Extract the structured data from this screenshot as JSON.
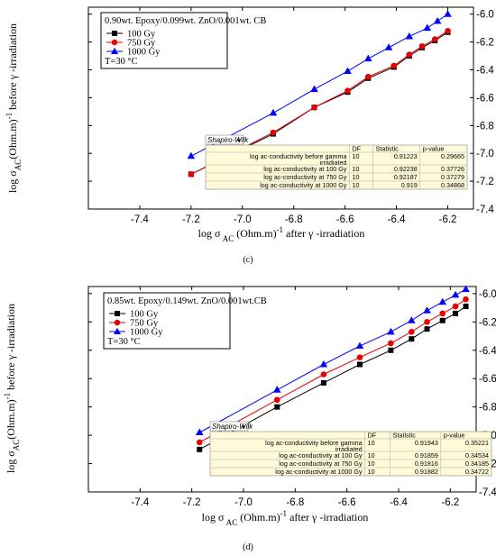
{
  "chart_data": [
    {
      "type": "line",
      "panel_label": "(c)",
      "legend_title": "0.90wt. Epoxy/0.099wt. ZnO/0.001wt. CB",
      "legend_note": "T=30 °C",
      "xlabel": "log σ AC (Ohm.m)^-1 after γ-irradiation",
      "ylabel": "log σ AC (Ohm.m)^-1 before γ-irradiation",
      "xlim": [
        -7.6,
        -6.1
      ],
      "ylim": [
        -7.4,
        -5.95
      ],
      "x_ticks": [
        "-7.4",
        "-7.2",
        "-7.0",
        "-6.8",
        "-6.6",
        "-6.4",
        "-6.2"
      ],
      "y_ticks": [
        "-6.0",
        "-6.2",
        "-6.4",
        "-6.6",
        "-6.8",
        "-7.0",
        "-7.2",
        "-7.4"
      ],
      "series": [
        {
          "name": "100 Gy",
          "color": "#000000",
          "marker": "square",
          "x": [
            -7.2,
            -6.88,
            -6.72,
            -6.59,
            -6.51,
            -6.41,
            -6.35,
            -6.3,
            -6.25,
            -6.2
          ],
          "y": [
            -7.15,
            -6.86,
            -6.67,
            -6.56,
            -6.46,
            -6.38,
            -6.3,
            -6.24,
            -6.19,
            -6.13
          ]
        },
        {
          "name": "750 Gy",
          "color": "#e60000",
          "marker": "circle",
          "x": [
            -7.2,
            -6.88,
            -6.72,
            -6.59,
            -6.51,
            -6.41,
            -6.35,
            -6.3,
            -6.25,
            -6.2
          ],
          "y": [
            -7.15,
            -6.85,
            -6.67,
            -6.55,
            -6.45,
            -6.37,
            -6.29,
            -6.23,
            -6.18,
            -6.12
          ]
        },
        {
          "name": "1000 Gy",
          "color": "#0000ff",
          "marker": "triangle",
          "x": [
            -7.2,
            -6.88,
            -6.72,
            -6.59,
            -6.51,
            -6.43,
            -6.35,
            -6.28,
            -6.24,
            -6.2
          ],
          "y": [
            -7.02,
            -6.71,
            -6.54,
            -6.41,
            -6.32,
            -6.24,
            -6.16,
            -6.1,
            -6.05,
            -6.0
          ]
        }
      ],
      "stats_table": {
        "title": "Shapiro-Wilk",
        "headers": [
          "",
          "DF",
          "Statistic",
          "p-value"
        ],
        "rows": [
          {
            "label": "log ac-conductivity before gamma irradiated",
            "label_lines": [
              "log ac-conductivity before gamma",
              "irradiated"
            ],
            "df": "10",
            "stat": "0.91223",
            "p": "0.29665"
          },
          {
            "label": "log ac-conductivity at 100 Gy",
            "label_lines": [
              "log ac-conductivity at 100 Gy"
            ],
            "df": "10",
            "stat": "0.92238",
            "p": "0.37726"
          },
          {
            "label": "log ac-conductivity at 750 Gy",
            "label_lines": [
              "log ac-conductivity at 750 Gy"
            ],
            "df": "10",
            "stat": "0.92187",
            "p": "0.37279"
          },
          {
            "label": "log ac-conductivity at 1000 Gy",
            "label_lines": [
              "log ac-conductivity at 1000 Gy"
            ],
            "df": "10",
            "stat": "0.919",
            "p": "0.34868"
          }
        ]
      }
    },
    {
      "type": "line",
      "panel_label": "(d)",
      "legend_title": "0.85wt. Epoxy/0.149wt. ZnO/0.001wt.CB",
      "legend_note": "T=30 °C",
      "xlabel": "log σ AC (Ohm.m)^-1 after γ-irradiation",
      "ylabel": "log σ AC (Ohm.m)^-1 before γ-irradiation",
      "xlim": [
        -7.6,
        -6.1
      ],
      "ylim": [
        -7.4,
        -5.95
      ],
      "x_ticks": [
        "-7.4",
        "-7.2",
        "-7.0",
        "-6.8",
        "-6.6",
        "-6.4",
        "-6.2"
      ],
      "y_ticks": [
        "-6.0",
        "-6.2",
        "-6.4",
        "-6.6",
        "-6.8",
        "-7.0",
        "-7.2",
        "-7.4"
      ],
      "series": [
        {
          "name": "100 Gy",
          "color": "#000000",
          "marker": "square",
          "x": [
            -7.17,
            -6.87,
            -6.69,
            -6.55,
            -6.43,
            -6.35,
            -6.29,
            -6.23,
            -6.18,
            -6.14
          ],
          "y": [
            -7.1,
            -6.8,
            -6.63,
            -6.5,
            -6.4,
            -6.32,
            -6.25,
            -6.19,
            -6.14,
            -6.09
          ]
        },
        {
          "name": "750 Gy",
          "color": "#e60000",
          "marker": "circle",
          "x": [
            -7.17,
            -6.87,
            -6.69,
            -6.55,
            -6.43,
            -6.35,
            -6.29,
            -6.23,
            -6.18,
            -6.14
          ],
          "y": [
            -7.05,
            -6.75,
            -6.57,
            -6.45,
            -6.35,
            -6.27,
            -6.2,
            -6.14,
            -6.09,
            -6.04
          ]
        },
        {
          "name": "1000 Gy",
          "color": "#0000ff",
          "marker": "triangle",
          "x": [
            -7.17,
            -6.87,
            -6.69,
            -6.55,
            -6.43,
            -6.35,
            -6.29,
            -6.23,
            -6.18,
            -6.14
          ],
          "y": [
            -6.98,
            -6.68,
            -6.5,
            -6.37,
            -6.27,
            -6.19,
            -6.12,
            -6.06,
            -6.01,
            -5.97
          ]
        }
      ],
      "stats_table": {
        "title": "Shapiro-Wilk",
        "headers": [
          "",
          "DF",
          "Statistic",
          "p-value"
        ],
        "rows": [
          {
            "label": "log ac-conductivity before gamma irradiated",
            "label_lines": [
              "log ac-conductivity before gamma",
              "irradiated"
            ],
            "df": "10",
            "stat": "0.91943",
            "p": "0.35221"
          },
          {
            "label": "log ac-conductivity at 100 Gy",
            "label_lines": [
              "log ac-conductivity at 100 Gy"
            ],
            "df": "10",
            "stat": "0.91859",
            "p": "0.34534"
          },
          {
            "label": "log ac-conductivity at 750 Gy",
            "label_lines": [
              "log ac-conductivity at 750 Gy"
            ],
            "df": "10",
            "stat": "0.91816",
            "p": "0.34185"
          },
          {
            "label": "log ac-conductivity at 1000 Gy",
            "label_lines": [
              "log ac-conductivity at 1000 Gy"
            ],
            "df": "10",
            "stat": "0.91882",
            "p": "0.34722"
          }
        ]
      }
    }
  ]
}
